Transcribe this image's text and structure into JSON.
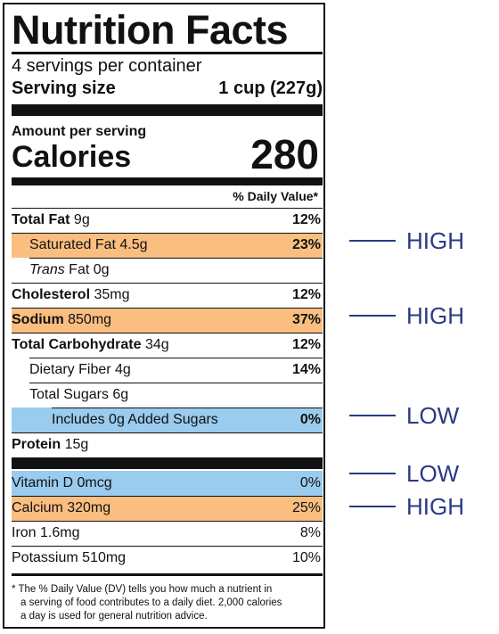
{
  "label": {
    "title": "Nutrition Facts",
    "servings_per_container": "4 servings per container",
    "serving_size_label": "Serving size",
    "serving_size_value": "1 cup (227g)",
    "amount_per_serving": "Amount per serving",
    "calories_label": "Calories",
    "calories_value": "280",
    "dv_header": "% Daily Value*",
    "nutrients": [
      {
        "name": "Total Fat",
        "amount": " 9g",
        "pct": "12%"
      },
      {
        "name": "Saturated Fat 4.5g",
        "amount": "",
        "pct": "23%"
      },
      {
        "name": "Trans",
        "amount": " Fat 0g",
        "pct": ""
      },
      {
        "name": "Cholesterol",
        "amount": " 35mg",
        "pct": "12%"
      },
      {
        "name": "Sodium",
        "amount": " 850mg",
        "pct": "37%"
      },
      {
        "name": "Total Carbohydrate",
        "amount": " 34g",
        "pct": "12%"
      },
      {
        "name": "Dietary Fiber 4g",
        "amount": "",
        "pct": "14%"
      },
      {
        "name": "Total Sugars 6g",
        "amount": "",
        "pct": ""
      },
      {
        "name": "Includes 0g Added Sugars",
        "amount": "",
        "pct": "0%"
      },
      {
        "name": "Protein",
        "amount": " 15g",
        "pct": ""
      }
    ],
    "vitamins": [
      {
        "name": "Vitamin D 0mcg",
        "pct": "0%"
      },
      {
        "name": "Calcium 320mg",
        "pct": "25%"
      },
      {
        "name": "Iron 1.6mg",
        "pct": "8%"
      },
      {
        "name": "Potassium 510mg",
        "pct": "10%"
      }
    ],
    "footnote_line1": "* The % Daily Value (DV) tells you how much a nutrient in",
    "footnote_line2": "a serving of food contributes to a daily diet. 2,000 calories",
    "footnote_line3": "a day is used for general nutrition advice."
  },
  "callouts": [
    {
      "text": "HIGH",
      "target": "Saturated Fat"
    },
    {
      "text": "HIGH",
      "target": "Sodium"
    },
    {
      "text": "LOW",
      "target": "Added Sugars"
    },
    {
      "text": "LOW",
      "target": "Vitamin D"
    },
    {
      "text": "HIGH",
      "target": "Calcium"
    }
  ],
  "colors": {
    "high_highlight": "#f9be80",
    "low_highlight": "#99ccee",
    "callout_text": "#2a3a84",
    "rules": "#111111"
  }
}
